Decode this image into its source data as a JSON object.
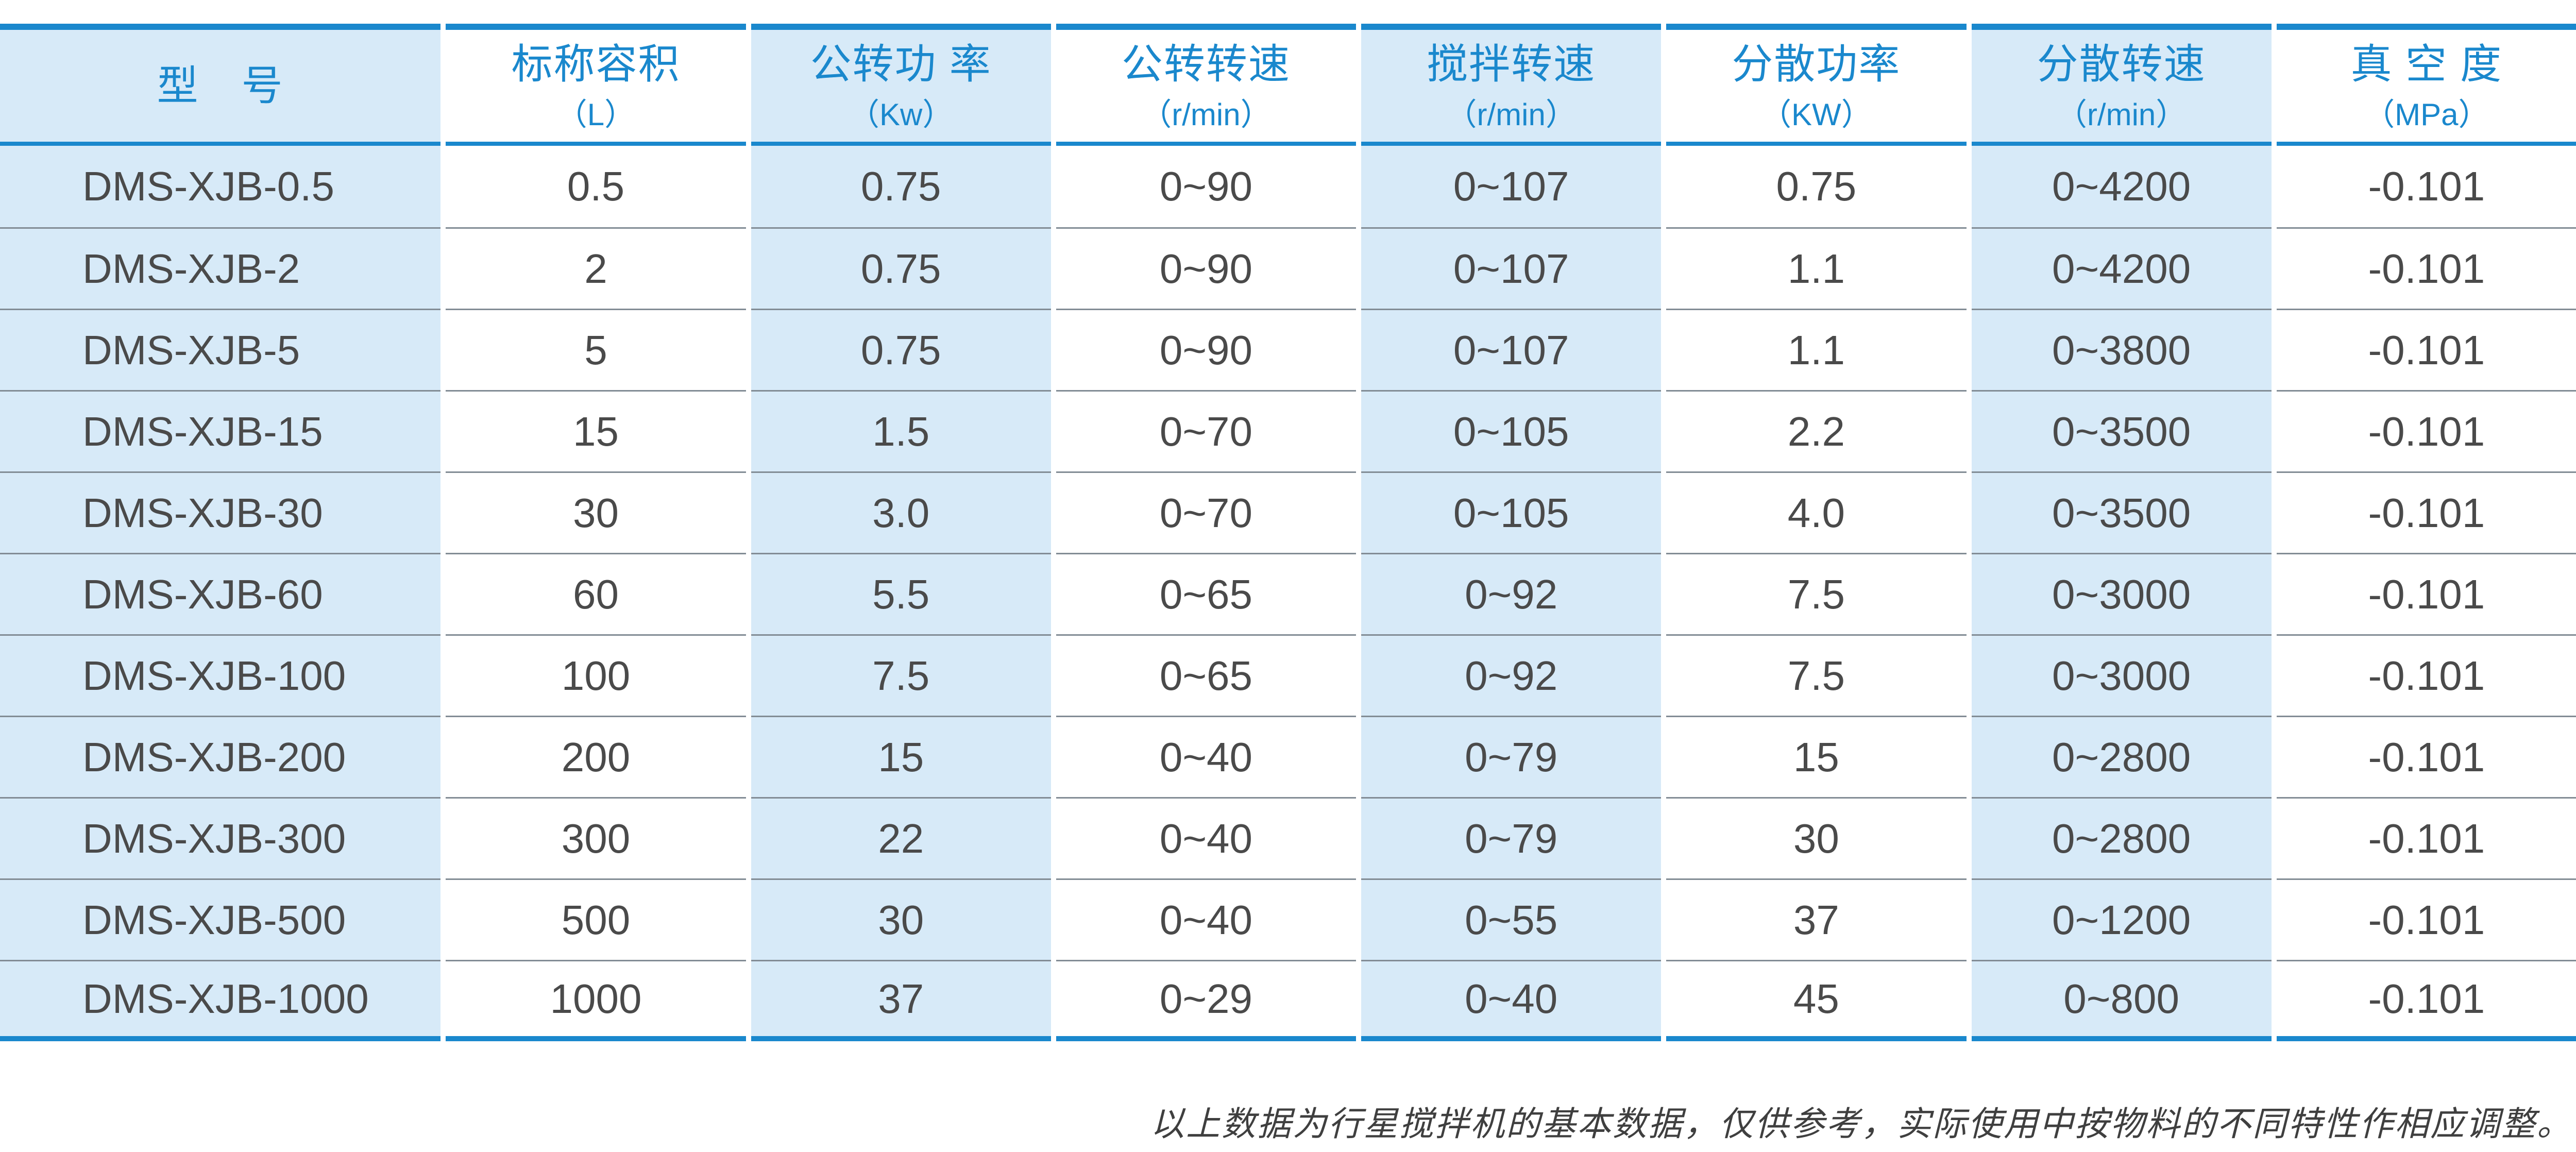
{
  "table": {
    "columns": [
      {
        "label": "型　号",
        "unit": ""
      },
      {
        "label": "标称容积",
        "unit": "（L）"
      },
      {
        "label": "公转功 率",
        "unit": "（Kw）"
      },
      {
        "label": "公转转速",
        "unit": "（r/min）"
      },
      {
        "label": "搅拌转速",
        "unit": "（r/min）"
      },
      {
        "label": "分散功率",
        "unit": "（KW）"
      },
      {
        "label": "分散转速",
        "unit": "（r/min）"
      },
      {
        "label": "真 空 度",
        "unit": "（MPa）"
      }
    ],
    "rows": [
      [
        "DMS-XJB-0.5",
        "0.5",
        "0.75",
        "0~90",
        "0~107",
        "0.75",
        "0~4200",
        "-0.101"
      ],
      [
        "DMS-XJB-2",
        "2",
        "0.75",
        "0~90",
        "0~107",
        "1.1",
        "0~4200",
        "-0.101"
      ],
      [
        "DMS-XJB-5",
        "5",
        "0.75",
        "0~90",
        "0~107",
        "1.1",
        "0~3800",
        "-0.101"
      ],
      [
        "DMS-XJB-15",
        "15",
        "1.5",
        "0~70",
        "0~105",
        "2.2",
        "0~3500",
        "-0.101"
      ],
      [
        "DMS-XJB-30",
        "30",
        "3.0",
        "0~70",
        "0~105",
        "4.0",
        "0~3500",
        "-0.101"
      ],
      [
        "DMS-XJB-60",
        "60",
        "5.5",
        "0~65",
        "0~92",
        "7.5",
        "0~3000",
        "-0.101"
      ],
      [
        "DMS-XJB-100",
        "100",
        "7.5",
        "0~65",
        "0~92",
        "7.5",
        "0~3000",
        "-0.101"
      ],
      [
        "DMS-XJB-200",
        "200",
        "15",
        "0~40",
        "0~79",
        "15",
        "0~2800",
        "-0.101"
      ],
      [
        "DMS-XJB-300",
        "300",
        "22",
        "0~40",
        "0~79",
        "30",
        "0~2800",
        "-0.101"
      ],
      [
        "DMS-XJB-500",
        "500",
        "30",
        "0~40",
        "0~55",
        "37",
        "0~1200",
        "-0.101"
      ],
      [
        "DMS-XJB-1000",
        "1000",
        "37",
        "0~29",
        "0~40",
        "45",
        "0~800",
        "-0.101"
      ]
    ]
  },
  "footer": {
    "note": "以上数据为行星搅拌机的基本数据，仅供参考，实际使用中按物料的不同特性作相应调整。"
  },
  "colors": {
    "accent_blue": "#1a88cd",
    "light_blue": "#d7eaf8",
    "row_line": "#828c95",
    "text_dark": "#4a4a4a",
    "footer_text": "#3f3f3f"
  }
}
